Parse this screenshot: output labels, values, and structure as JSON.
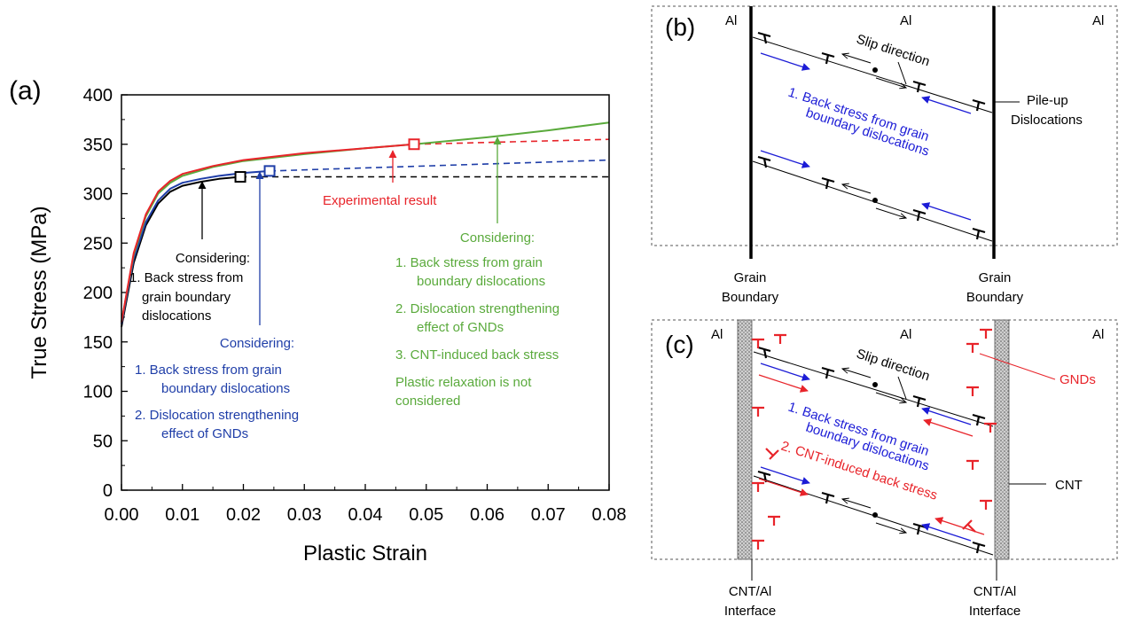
{
  "panel_a": {
    "label": "(a)",
    "annotations": {
      "black": [
        "Considering:",
        "1. Back stress from",
        "grain boundary",
        "dislocations"
      ],
      "red": [
        "Experimental result"
      ],
      "blue": [
        "Considering:",
        "1. Back stress from grain",
        "boundary dislocations",
        "2. Dislocation strengthening",
        "effect of GNDs"
      ],
      "green": [
        "Considering:",
        "1. Back stress from grain",
        "boundary dislocations",
        "2. Dislocation strengthening",
        "effect of GNDs",
        "3. CNT-induced back stress",
        "Plastic relaxation is not",
        "considered"
      ]
    }
  },
  "chart_data": {
    "type": "line",
    "xlabel": "Plastic Strain",
    "ylabel": "True Stress (MPa)",
    "xlim": [
      0,
      0.08
    ],
    "ylim": [
      0,
      400
    ],
    "xticks": [
      "0.00",
      "0.01",
      "0.02",
      "0.03",
      "0.04",
      "0.05",
      "0.06",
      "0.07",
      "0.08"
    ],
    "yticks": [
      "0",
      "50",
      "100",
      "150",
      "200",
      "250",
      "300",
      "350",
      "400"
    ],
    "grid": false,
    "series": [
      {
        "color": "#000000",
        "solid": [
          [
            0,
            165
          ],
          [
            0.002,
            230
          ],
          [
            0.004,
            268
          ],
          [
            0.006,
            290
          ],
          [
            0.008,
            302
          ],
          [
            0.01,
            308
          ],
          [
            0.013,
            312
          ],
          [
            0.016,
            315
          ],
          [
            0.0195,
            317
          ]
        ],
        "dashed": [
          [
            0.0195,
            317
          ],
          [
            0.08,
            317
          ]
        ],
        "marker": [
          0.0195,
          317
        ]
      },
      {
        "color": "#1f3ea8",
        "solid": [
          [
            0,
            168
          ],
          [
            0.002,
            234
          ],
          [
            0.004,
            271
          ],
          [
            0.006,
            293
          ],
          [
            0.008,
            305
          ],
          [
            0.01,
            311
          ],
          [
            0.013,
            315
          ],
          [
            0.016,
            318
          ],
          [
            0.02,
            321
          ],
          [
            0.0243,
            323
          ]
        ],
        "dashed": [
          [
            0.0243,
            323
          ],
          [
            0.08,
            334
          ]
        ],
        "marker": [
          0.0243,
          323
        ]
      },
      {
        "color": "#5aaa3c",
        "solid": [
          [
            0,
            170
          ],
          [
            0.002,
            238
          ],
          [
            0.004,
            277
          ],
          [
            0.006,
            300
          ],
          [
            0.008,
            311
          ],
          [
            0.01,
            318
          ],
          [
            0.015,
            327
          ],
          [
            0.02,
            333
          ],
          [
            0.03,
            340
          ],
          [
            0.04,
            346
          ],
          [
            0.048,
            350
          ],
          [
            0.06,
            357
          ],
          [
            0.07,
            364
          ],
          [
            0.08,
            372
          ]
        ],
        "dashed": [],
        "marker": null
      },
      {
        "color": "#e8242a",
        "solid": [
          [
            0,
            170
          ],
          [
            0.002,
            240
          ],
          [
            0.004,
            279
          ],
          [
            0.006,
            302
          ],
          [
            0.008,
            313
          ],
          [
            0.01,
            320
          ],
          [
            0.015,
            328
          ],
          [
            0.02,
            334
          ],
          [
            0.03,
            341
          ],
          [
            0.04,
            346
          ],
          [
            0.048,
            350
          ]
        ],
        "dashed": [
          [
            0.048,
            350
          ],
          [
            0.08,
            355
          ]
        ],
        "marker": [
          0.048,
          350
        ]
      }
    ]
  },
  "panel_b": {
    "label": "(b)",
    "al": [
      "Al",
      "Al",
      "Al"
    ],
    "slip_direction": "Slip direction",
    "pileup": [
      "Pile-up",
      "Dislocations"
    ],
    "back_stress": [
      "1. Back stress from grain",
      "boundary dislocations"
    ],
    "grain_boundary": [
      "Grain",
      "Boundary"
    ],
    "colors": {
      "blue": "#1c1cd6"
    }
  },
  "panel_c": {
    "label": "(c)",
    "al": [
      "Al",
      "Al",
      "Al"
    ],
    "slip_direction": "Slip direction",
    "gnds": "GNDs",
    "back_stress": [
      "1. Back stress from grain",
      "boundary dislocations"
    ],
    "cnt_back_stress": "2. CNT-induced back stress",
    "cnt": "CNT",
    "interface": [
      "CNT/Al",
      "Interface"
    ],
    "colors": {
      "red": "#e8242a",
      "blue": "#1c1cd6"
    }
  }
}
